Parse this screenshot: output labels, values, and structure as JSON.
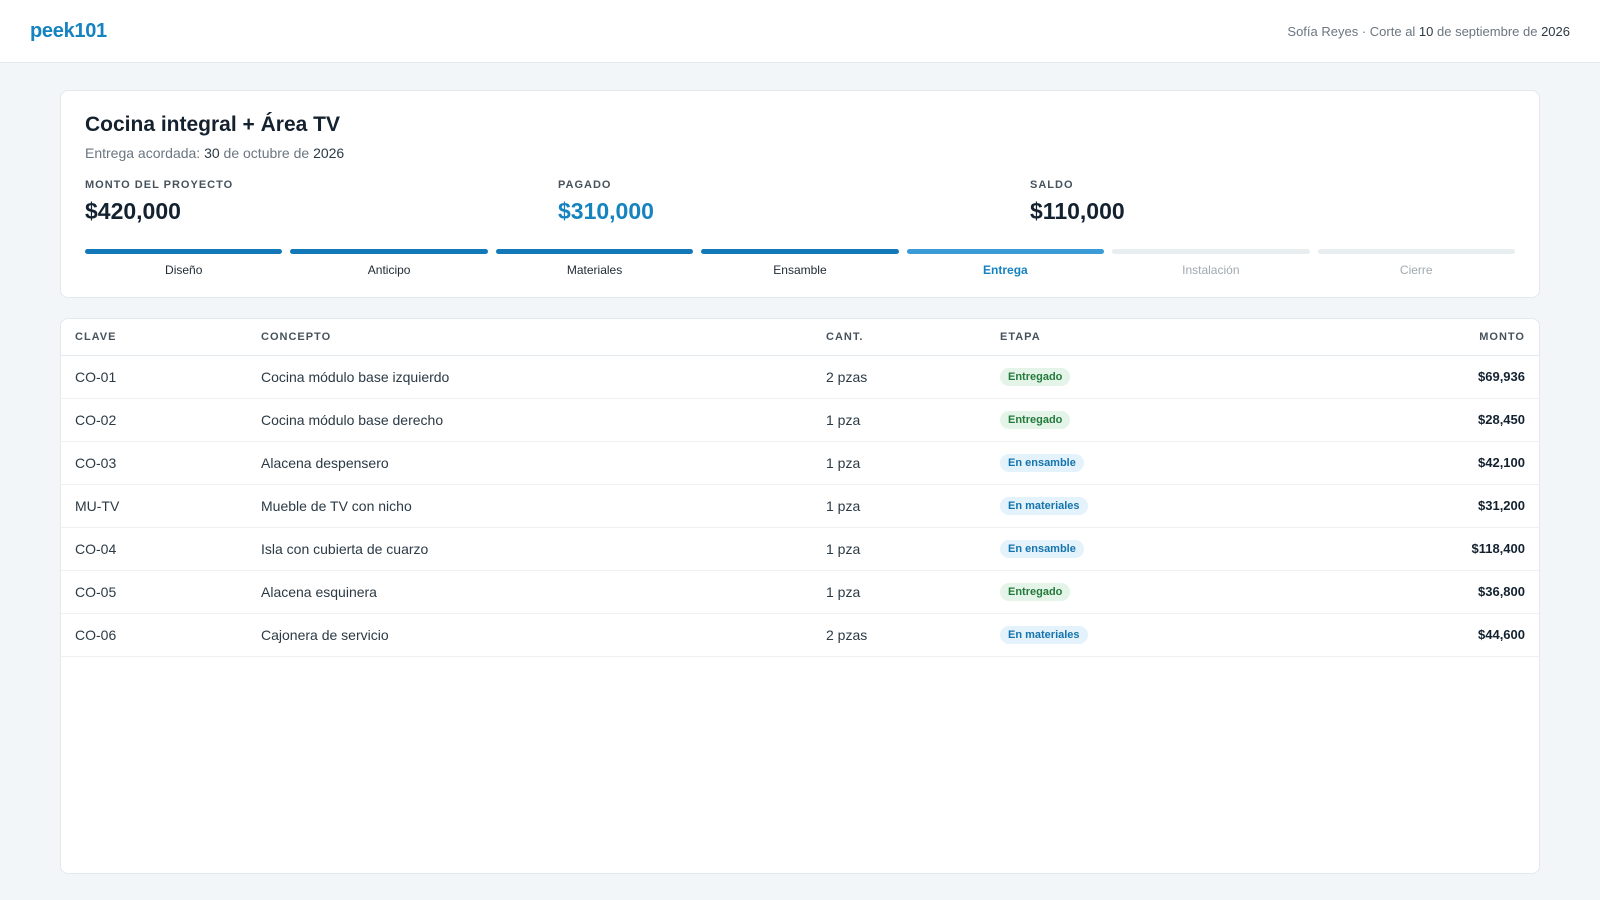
{
  "header": {
    "logo": "peek101",
    "user": "Sofía Reyes",
    "cutoff_prefix": " · Corte al ",
    "cutoff_day": "10",
    "cutoff_mid": " de septiembre de ",
    "cutoff_year": "2026"
  },
  "project": {
    "title": "Cocina integral + Área TV",
    "delivery_prefix": "Entrega acordada: ",
    "delivery_day": "30",
    "delivery_mid": " de octubre de ",
    "delivery_year": "2026"
  },
  "metrics": [
    {
      "label": "MONTO DEL PROYECTO",
      "value": "$420,000"
    },
    {
      "label": "PAGADO",
      "value": "$310,000"
    },
    {
      "label": "SALDO",
      "value": "$110,000"
    }
  ],
  "stages": [
    {
      "label": "Diseño",
      "status": "done"
    },
    {
      "label": "Anticipo",
      "status": "done"
    },
    {
      "label": "Materiales",
      "status": "done"
    },
    {
      "label": "Ensamble",
      "status": "done"
    },
    {
      "label": "Entrega",
      "status": "current"
    },
    {
      "label": "Instalación",
      "status": "pending"
    },
    {
      "label": "Cierre",
      "status": "pending"
    }
  ],
  "table": {
    "headers": {
      "clave": "CLAVE",
      "concepto": "CONCEPTO",
      "cant": "CANT.",
      "etapa": "ETAPA",
      "monto": "MONTO"
    },
    "rows": [
      {
        "clave": "CO-01",
        "concepto": "Cocina módulo base izquierdo",
        "cant": "2 pzas",
        "etapa": "Entregado",
        "monto": "$69,936"
      },
      {
        "clave": "CO-02",
        "concepto": "Cocina módulo base derecho",
        "cant": "1 pza",
        "etapa": "Entregado",
        "monto": "$28,450"
      },
      {
        "clave": "CO-03",
        "concepto": "Alacena despensero",
        "cant": "1 pza",
        "etapa": "En ensamble",
        "monto": "$42,100"
      },
      {
        "clave": "MU-TV",
        "concepto": "Mueble de TV con nicho",
        "cant": "1 pza",
        "etapa": "En materiales",
        "monto": "$31,200"
      },
      {
        "clave": "CO-04",
        "concepto": "Isla con cubierta de cuarzo",
        "cant": "1 pza",
        "etapa": "En ensamble",
        "monto": "$118,400"
      },
      {
        "clave": "CO-05",
        "concepto": "Alacena esquinera",
        "cant": "1 pza",
        "etapa": "Entregado",
        "monto": "$36,800"
      },
      {
        "clave": "CO-06",
        "concepto": "Cajonera de servicio",
        "cant": "2 pzas",
        "etapa": "En materiales",
        "monto": "$44,600"
      }
    ]
  },
  "colors": {
    "accent": "#1583bf",
    "delivered_badge": "#247a3b",
    "in_progress_badge": "#1574ad"
  }
}
